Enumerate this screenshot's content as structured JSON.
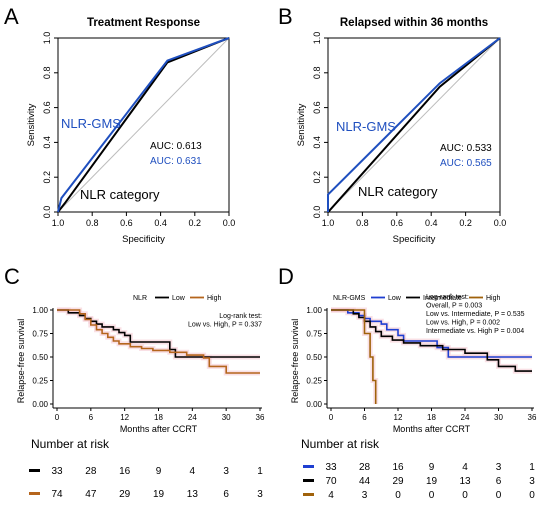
{
  "panels": {
    "A": {
      "letter": "A"
    },
    "B": {
      "letter": "B"
    },
    "C": {
      "letter": "C"
    },
    "D": {
      "letter": "D"
    }
  },
  "chart_data": [
    {
      "id": "A",
      "type": "line",
      "title": "Treatment Response",
      "xlabel": "Specificity",
      "ylabel": "Sensitivity",
      "xticks": [
        "1.0",
        "0.8",
        "0.6",
        "0.4",
        "0.2",
        "0.0"
      ],
      "yticks": [
        "0.0",
        "0.2",
        "0.4",
        "0.6",
        "0.8",
        "1.0"
      ],
      "xlim": [
        1.0,
        0.0
      ],
      "ylim": [
        0.0,
        1.0
      ],
      "series": [
        {
          "name": "NLR category",
          "color": "#000000",
          "auc_text": "AUC: 0.613",
          "points": [
            [
              1.0,
              0.0
            ],
            [
              0.96,
              0.05
            ],
            [
              0.36,
              0.86
            ],
            [
              0.0,
              1.0
            ]
          ]
        },
        {
          "name": "NLR-GMS",
          "color": "#1f4fbf",
          "auc_text": "AUC: 0.631",
          "points": [
            [
              1.0,
              0.0
            ],
            [
              0.98,
              0.08
            ],
            [
              0.36,
              0.87
            ],
            [
              0.0,
              1.0
            ]
          ]
        }
      ]
    },
    {
      "id": "B",
      "type": "line",
      "title": "Relapsed within 36 months",
      "xlabel": "Specificity",
      "ylabel": "Sensitivity",
      "xticks": [
        "1.0",
        "0.8",
        "0.6",
        "0.4",
        "0.2",
        "0.0"
      ],
      "yticks": [
        "0.0",
        "0.2",
        "0.4",
        "0.6",
        "0.8",
        "1.0"
      ],
      "xlim": [
        1.0,
        0.0
      ],
      "ylim": [
        0.0,
        1.0
      ],
      "series": [
        {
          "name": "NLR category",
          "color": "#000000",
          "auc_text": "AUC: 0.533",
          "points": [
            [
              1.0,
              0.0
            ],
            [
              0.99,
              0.01
            ],
            [
              0.35,
              0.72
            ],
            [
              0.0,
              1.0
            ]
          ]
        },
        {
          "name": "NLR-GMS",
          "color": "#1f4fbf",
          "auc_text": "AUC: 0.565",
          "points": [
            [
              1.0,
              0.0
            ],
            [
              1.0,
              0.1
            ],
            [
              0.35,
              0.74
            ],
            [
              0.0,
              1.0
            ]
          ]
        }
      ]
    },
    {
      "id": "C",
      "type": "line",
      "legend_title": "NLR",
      "xlabel": "Months after CCRT",
      "ylabel": "Relapse-free survival",
      "xticks": [
        "0",
        "6",
        "12",
        "18",
        "24",
        "30",
        "36"
      ],
      "yticks": [
        "0.00",
        "0.25",
        "0.50",
        "0.75",
        "1.00"
      ],
      "xlim": [
        0,
        36
      ],
      "ylim": [
        0,
        1
      ],
      "annotation": [
        "Log-rank test:",
        "Low vs. High, P = 0.337"
      ],
      "risk_title": "Number at risk",
      "series": [
        {
          "name": "Low",
          "color": "#000000",
          "steps": [
            [
              0,
              1.0
            ],
            [
              2,
              0.97
            ],
            [
              4,
              0.94
            ],
            [
              5,
              0.91
            ],
            [
              6,
              0.88
            ],
            [
              7,
              0.85
            ],
            [
              8,
              0.82
            ],
            [
              10,
              0.79
            ],
            [
              11,
              0.76
            ],
            [
              12,
              0.73
            ],
            [
              13,
              0.66
            ],
            [
              20,
              0.58
            ],
            [
              21,
              0.5
            ],
            [
              36,
              0.5
            ]
          ],
          "risk": [
            "33",
            "28",
            "16",
            "9",
            "4",
            "3",
            "1"
          ]
        },
        {
          "name": "High",
          "color": "#b5651d",
          "steps": [
            [
              0,
              1.0
            ],
            [
              4,
              0.96
            ],
            [
              5,
              0.9
            ],
            [
              6,
              0.84
            ],
            [
              7,
              0.79
            ],
            [
              8,
              0.75
            ],
            [
              9,
              0.71
            ],
            [
              10,
              0.67
            ],
            [
              11,
              0.64
            ],
            [
              13,
              0.61
            ],
            [
              15,
              0.59
            ],
            [
              17,
              0.57
            ],
            [
              20,
              0.55
            ],
            [
              23,
              0.52
            ],
            [
              26,
              0.49
            ],
            [
              27,
              0.4
            ],
            [
              30,
              0.33
            ],
            [
              36,
              0.33
            ]
          ],
          "risk": [
            "74",
            "47",
            "29",
            "19",
            "13",
            "6",
            "3"
          ]
        }
      ]
    },
    {
      "id": "D",
      "type": "line",
      "legend_title": "NLR-GMS",
      "xlabel": "Months after CCRT",
      "ylabel": "Relapse-free survival",
      "xticks": [
        "0",
        "6",
        "12",
        "18",
        "24",
        "30",
        "36"
      ],
      "yticks": [
        "0.00",
        "0.25",
        "0.50",
        "0.75",
        "1.00"
      ],
      "xlim": [
        0,
        36
      ],
      "ylim": [
        0,
        1
      ],
      "annotation": [
        "Log-rank test:",
        "Overall, P = 0.003",
        "Low vs. Intermediate, P = 0.535",
        "Low vs. High, P = 0.002",
        "Intermediate vs. High P = 0.004"
      ],
      "risk_title": "Number at risk",
      "series": [
        {
          "name": "Low",
          "color": "#1f3fd1",
          "steps": [
            [
              0,
              1.0
            ],
            [
              3,
              0.97
            ],
            [
              5,
              0.94
            ],
            [
              6,
              0.91
            ],
            [
              7,
              0.88
            ],
            [
              9,
              0.85
            ],
            [
              10,
              0.79
            ],
            [
              12,
              0.73
            ],
            [
              13,
              0.67
            ],
            [
              19,
              0.6
            ],
            [
              21,
              0.5
            ],
            [
              36,
              0.5
            ]
          ],
          "risk": [
            "33",
            "28",
            "16",
            "9",
            "4",
            "3",
            "1"
          ]
        },
        {
          "name": "Intermediate",
          "color": "#000000",
          "steps": [
            [
              0,
              1.0
            ],
            [
              4,
              0.96
            ],
            [
              5,
              0.92
            ],
            [
              6,
              0.88
            ],
            [
              7,
              0.82
            ],
            [
              8,
              0.77
            ],
            [
              9,
              0.72
            ],
            [
              11,
              0.68
            ],
            [
              13,
              0.65
            ],
            [
              16,
              0.62
            ],
            [
              20,
              0.58
            ],
            [
              24,
              0.54
            ],
            [
              28,
              0.47
            ],
            [
              30,
              0.4
            ],
            [
              33,
              0.35
            ],
            [
              36,
              0.35
            ]
          ],
          "risk": [
            "70",
            "44",
            "29",
            "19",
            "13",
            "6",
            "3"
          ]
        },
        {
          "name": "High",
          "color": "#a0620b",
          "steps": [
            [
              0,
              1.0
            ],
            [
              6,
              0.75
            ],
            [
              7,
              0.5
            ],
            [
              7.5,
              0.25
            ],
            [
              8,
              0.0
            ]
          ],
          "risk": [
            "4",
            "3",
            "0",
            "0",
            "0",
            "0",
            "0"
          ]
        }
      ]
    }
  ]
}
